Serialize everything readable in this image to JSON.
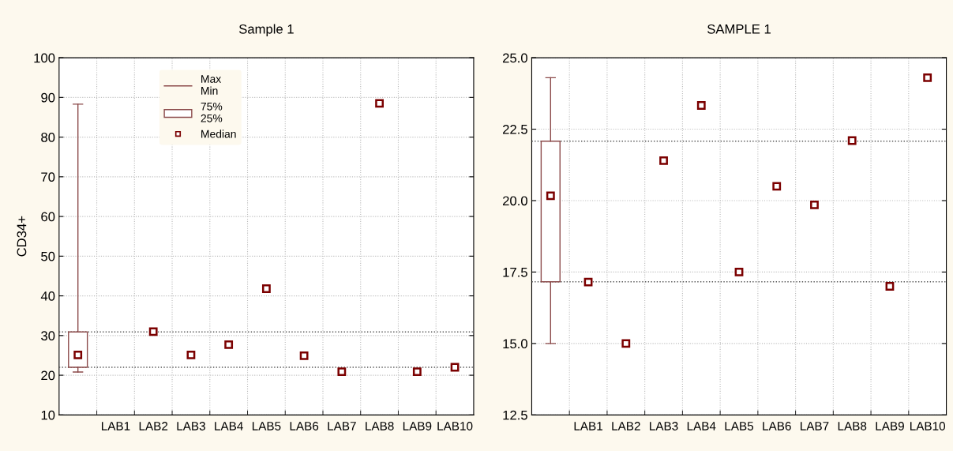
{
  "chart_data": [
    {
      "type": "box",
      "title": "Sample 1",
      "ylabel": "CD34+",
      "categories": [
        null,
        "LAB1",
        "LAB2",
        "LAB3",
        "LAB4",
        "LAB5",
        "LAB6",
        "LAB7",
        "LAB8",
        "LAB9",
        "LAB10"
      ],
      "ylim": [
        10,
        100
      ],
      "yticks": [
        10,
        20,
        30,
        40,
        50,
        60,
        70,
        80,
        90,
        100
      ],
      "grid": true,
      "legend": "top left",
      "annotations": [
        "Max\nMin"
      ],
      "series": [
        {
          "type": "box",
          "name": "75%\n25%",
          "color": "#8b4a4a",
          "boxes": [
            {
              "low": 20.8,
              "q1": 22.0,
              "median": 25.1,
              "q3": 30.9,
              "high": 88.3
            },
            null,
            null,
            null,
            null,
            null,
            null,
            null,
            null,
            null,
            null
          ]
        },
        {
          "type": "scatter",
          "name": "Median",
          "color": "#7b0000",
          "marker": "square",
          "values": [
            null,
            null,
            31.0,
            25.1,
            27.7,
            41.8,
            24.9,
            20.9,
            88.5,
            20.9,
            22.0
          ]
        }
      ],
      "ref_lines": [
        {
          "axis": "y",
          "value": 30.9,
          "color": "#555555",
          "line_style": "dotted"
        },
        {
          "axis": "y",
          "value": 22.0,
          "color": "#555555",
          "line_style": "dotted"
        }
      ]
    },
    {
      "type": "box",
      "title": "SAMPLE 1",
      "categories": [
        null,
        "LAB1",
        "LAB2",
        "LAB3",
        "LAB4",
        "LAB5",
        "LAB6",
        "LAB7",
        "LAB8",
        "LAB9",
        "LAB10"
      ],
      "ylim": [
        12.5,
        25.0
      ],
      "yticks": [
        12.5,
        {
          "value": 15,
          "label": "15.0"
        },
        17.5,
        {
          "value": 20,
          "label": "20.0"
        },
        22.5,
        {
          "value": 25,
          "label": "25.0"
        }
      ],
      "grid": true,
      "series": [
        {
          "type": "box",
          "color": "#8b4a4a",
          "boxes": [
            {
              "low": 15.0,
              "q1": 17.16,
              "median": 20.17,
              "q3": 22.08,
              "high": 24.3
            },
            null,
            null,
            null,
            null,
            null,
            null,
            null,
            null,
            null,
            null
          ]
        },
        {
          "type": "scatter",
          "color": "#7b0000",
          "marker": "square",
          "values": [
            null,
            17.15,
            15.0,
            21.4,
            23.33,
            17.5,
            20.5,
            19.85,
            22.1,
            17.0,
            24.3
          ]
        }
      ],
      "ref_lines": [
        {
          "axis": "y",
          "value": 22.08,
          "color": "#555555",
          "line_style": "dotted"
        },
        {
          "axis": "y",
          "value": 17.16,
          "color": "#555555",
          "line_style": "dotted"
        }
      ]
    }
  ]
}
